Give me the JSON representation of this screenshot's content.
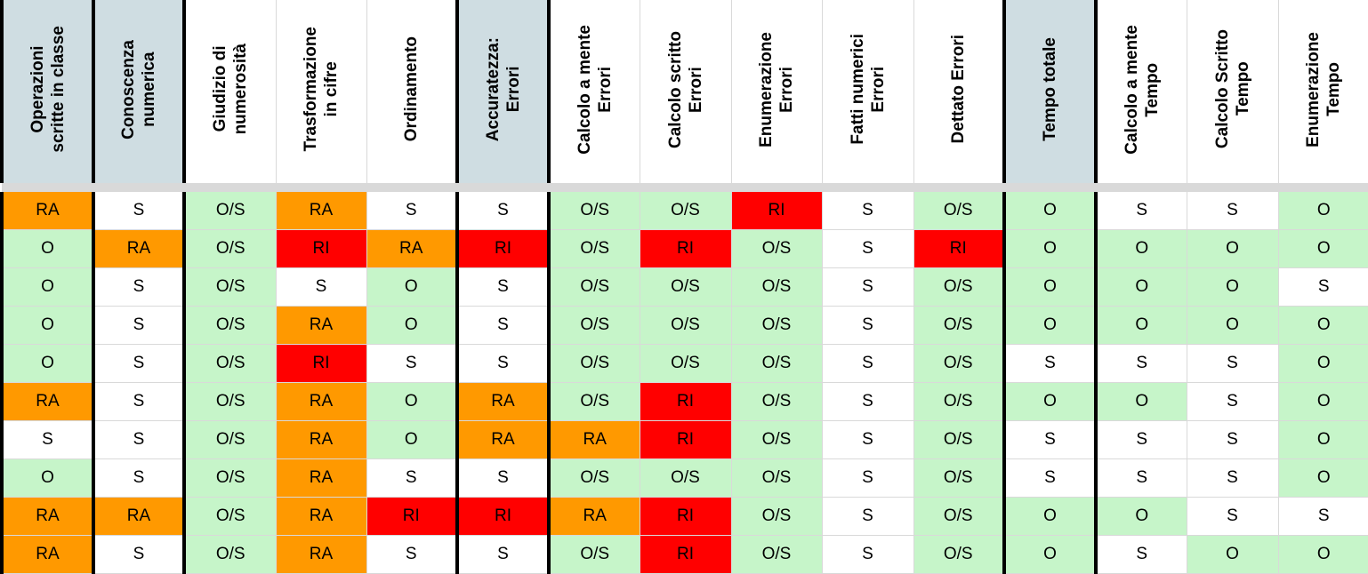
{
  "colors": {
    "O": "#c6f5c9",
    "O/S": "#c6f5c9",
    "S": "#ffffff",
    "RA": "#ff9900",
    "RI": "#ff0000",
    "header_plain": "#ffffff",
    "header_group": "#cfdde2"
  },
  "columns": [
    {
      "label": "Operazioni\nscritte in classe",
      "group": true,
      "thick_left": true
    },
    {
      "label": "Conoscenza\nnumerica",
      "group": true,
      "thick_left": true
    },
    {
      "label": "Giudizio di\nnumerosità",
      "group": false,
      "thick_left": true
    },
    {
      "label": "Trasformazione\nin cifre",
      "group": false,
      "thick_left": false
    },
    {
      "label": "Ordinamento",
      "group": false,
      "thick_left": false
    },
    {
      "label": "Accuratezza:\nErrori",
      "group": true,
      "thick_left": true
    },
    {
      "label": "Calcolo a mente\nErrori",
      "group": false,
      "thick_left": true
    },
    {
      "label": "Calcolo scritto\nErrori",
      "group": false,
      "thick_left": false
    },
    {
      "label": "Enumerazione\nErrori",
      "group": false,
      "thick_left": false
    },
    {
      "label": "Fatti numerici\nErrori",
      "group": false,
      "thick_left": false
    },
    {
      "label": "Dettato Errori",
      "group": false,
      "thick_left": false
    },
    {
      "label": "Tempo totale",
      "group": true,
      "thick_left": true
    },
    {
      "label": "Calcolo a mente\nTempo",
      "group": false,
      "thick_left": true
    },
    {
      "label": "Calcolo Scritto\nTempo",
      "group": false,
      "thick_left": false
    },
    {
      "label": "Enumerazione\nTempo",
      "group": false,
      "thick_left": false
    }
  ],
  "rows": [
    [
      "RA",
      "S",
      "O/S",
      "RA",
      "S",
      "S",
      "O/S",
      "O/S",
      "RI",
      "S",
      "O/S",
      "O",
      "S",
      "S",
      "O"
    ],
    [
      "O",
      "RA",
      "O/S",
      "RI",
      "RA",
      "RI",
      "O/S",
      "RI",
      "O/S",
      "S",
      "RI",
      "O",
      "O",
      "O",
      "O"
    ],
    [
      "O",
      "S",
      "O/S",
      "S",
      "O",
      "S",
      "O/S",
      "O/S",
      "O/S",
      "S",
      "O/S",
      "O",
      "O",
      "O",
      "S"
    ],
    [
      "O",
      "S",
      "O/S",
      "RA",
      "O",
      "S",
      "O/S",
      "O/S",
      "O/S",
      "S",
      "O/S",
      "O",
      "O",
      "O",
      "O"
    ],
    [
      "O",
      "S",
      "O/S",
      "RI",
      "S",
      "S",
      "O/S",
      "O/S",
      "O/S",
      "S",
      "O/S",
      "S",
      "S",
      "S",
      "O"
    ],
    [
      "RA",
      "S",
      "O/S",
      "RA",
      "O",
      "RA",
      "O/S",
      "RI",
      "O/S",
      "S",
      "O/S",
      "O",
      "O",
      "S",
      "O"
    ],
    [
      "S",
      "S",
      "O/S",
      "RA",
      "O",
      "RA",
      "RA",
      "RI",
      "O/S",
      "S",
      "O/S",
      "S",
      "S",
      "S",
      "O"
    ],
    [
      "O",
      "S",
      "O/S",
      "RA",
      "S",
      "S",
      "O/S",
      "O/S",
      "O/S",
      "S",
      "O/S",
      "S",
      "S",
      "S",
      "O"
    ],
    [
      "RA",
      "RA",
      "O/S",
      "RA",
      "RI",
      "RI",
      "RA",
      "RI",
      "O/S",
      "S",
      "O/S",
      "O",
      "O",
      "S",
      "S"
    ],
    [
      "RA",
      "S",
      "O/S",
      "RA",
      "S",
      "S",
      "O/S",
      "RI",
      "O/S",
      "S",
      "O/S",
      "O",
      "S",
      "O",
      "O"
    ]
  ]
}
